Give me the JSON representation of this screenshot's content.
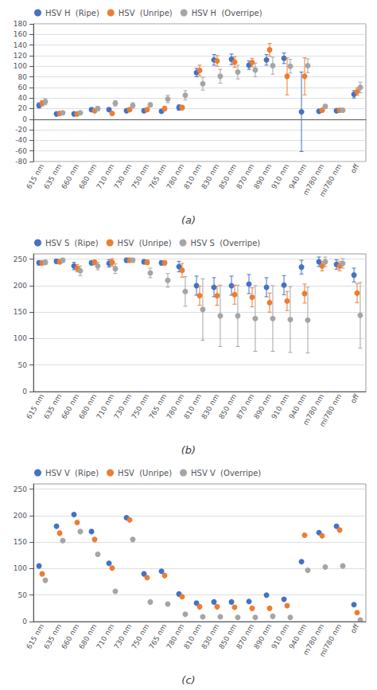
{
  "chart_data": [
    {
      "type": "scatter",
      "annotation": "(a)",
      "categories": [
        "615 nm",
        "635 nm",
        "660 nm",
        "680 nm",
        "710 nm",
        "730 nm",
        "750 nm",
        "765 nm",
        "780 nm",
        "810 nm",
        "830 nm",
        "850 nm",
        "870 nm",
        "890 nm",
        "910 nm",
        "940 nm",
        "m780 nm",
        "ml780 nm",
        "off"
      ],
      "series": [
        {
          "name": "HSV H  (Ripe)",
          "color": "#4472C4",
          "values": [
            26,
            10,
            10,
            18,
            18,
            16,
            16,
            15,
            22,
            88,
            112,
            113,
            102,
            112,
            115,
            14,
            15,
            16,
            47
          ],
          "errors": [
            5,
            2,
            2,
            3,
            3,
            3,
            3,
            3,
            5,
            8,
            10,
            10,
            8,
            10,
            10,
            75,
            3,
            3,
            7
          ]
        },
        {
          "name": "HSV  (Unripe)",
          "color": "#ED7D31",
          "values": [
            30,
            11,
            10,
            16,
            11,
            18,
            18,
            20,
            22,
            92,
            110,
            108,
            107,
            131,
            81,
            81,
            17,
            17,
            52
          ],
          "errors": [
            5,
            2,
            2,
            3,
            2,
            3,
            3,
            4,
            4,
            10,
            10,
            10,
            8,
            12,
            35,
            35,
            3,
            3,
            7
          ]
        },
        {
          "name": "HSV H  (Overripe)",
          "color": "#A5A5A5",
          "values": [
            33,
            12,
            12,
            20,
            30,
            26,
            27,
            38,
            45,
            67,
            81,
            89,
            93,
            101,
            100,
            101,
            24,
            17,
            60
          ],
          "errors": [
            6,
            2,
            2,
            4,
            5,
            5,
            4,
            7,
            9,
            12,
            13,
            13,
            13,
            16,
            13,
            13,
            4,
            3,
            10
          ]
        }
      ],
      "ylim": [
        -80,
        180
      ],
      "yticks": [
        -80,
        -60,
        -40,
        -20,
        0,
        20,
        40,
        60,
        80,
        100,
        120,
        140,
        160,
        180
      ],
      "grid": true,
      "legend": "upper left"
    },
    {
      "type": "scatter",
      "annotation": "(b)",
      "categories": [
        "615 nm",
        "635 nm",
        "660 nm",
        "680 nm",
        "710 nm",
        "730 nm",
        "750 nm",
        "765 nm",
        "780 nm",
        "810 nm",
        "830 nm",
        "850 nm",
        "870 nm",
        "890 nm",
        "910 nm",
        "940 nm",
        "m780 nm",
        "ml780 nm",
        "off"
      ],
      "series": [
        {
          "name": "HSV S  (Ripe)",
          "color": "#4472C4",
          "values": [
            243,
            246,
            237,
            243,
            242,
            248,
            245,
            243,
            236,
            200,
            197,
            200,
            203,
            197,
            201,
            235,
            245,
            240,
            220
          ],
          "errors": [
            4,
            4,
            7,
            4,
            7,
            4,
            4,
            4,
            10,
            18,
            18,
            18,
            18,
            18,
            18,
            13,
            9,
            9,
            13
          ]
        },
        {
          "name": "HSV  (Unripe)",
          "color": "#ED7D31",
          "values": [
            243,
            245,
            233,
            244,
            244,
            248,
            244,
            243,
            229,
            181,
            181,
            183,
            178,
            168,
            171,
            185,
            237,
            237,
            186
          ],
          "errors": [
            4,
            4,
            7,
            4,
            7,
            4,
            4,
            4,
            13,
            18,
            18,
            18,
            18,
            18,
            18,
            18,
            9,
            9,
            18
          ]
        },
        {
          "name": "HSV S  (Overripe)",
          "color": "#A5A5A5",
          "values": [
            244,
            248,
            228,
            237,
            232,
            248,
            224,
            210,
            189,
            155,
            143,
            143,
            138,
            138,
            136,
            135,
            245,
            242,
            144
          ],
          "errors": [
            4,
            4,
            9,
            7,
            9,
            4,
            9,
            13,
            28,
            58,
            58,
            58,
            62,
            62,
            62,
            62,
            9,
            9,
            62
          ]
        }
      ],
      "ylim": [
        0,
        260
      ],
      "yticks": [
        0,
        50,
        100,
        150,
        200,
        250
      ],
      "grid": true,
      "legend": "upper left"
    },
    {
      "type": "scatter",
      "annotation": "(c)",
      "categories": [
        "615 nm",
        "635 nm",
        "660 nm",
        "680 nm",
        "710 nm",
        "730 nm",
        "750 nm",
        "765 nm",
        "780 nm",
        "810 nm",
        "830 nm",
        "850 nm",
        "870 nm",
        "890 nm",
        "910 nm",
        "940 nm",
        "m780 nm",
        "ml780 nm",
        "off"
      ],
      "series": [
        {
          "name": "HSV V  (Ripe)",
          "color": "#4472C4",
          "values": [
            105,
            180,
            202,
            170,
            110,
            196,
            90,
            95,
            52,
            35,
            37,
            37,
            38,
            50,
            42,
            113,
            168,
            180,
            32
          ]
        },
        {
          "name": "HSV  (Unripe)",
          "color": "#ED7D31",
          "values": [
            90,
            167,
            187,
            155,
            101,
            192,
            83,
            87,
            47,
            28,
            28,
            27,
            25,
            25,
            30,
            163,
            162,
            173,
            17
          ]
        },
        {
          "name": "HSV V  (Overripe)",
          "color": "#A5A5A5",
          "values": [
            78,
            153,
            170,
            127,
            57,
            155,
            37,
            33,
            14,
            9,
            9,
            8,
            8,
            10,
            8,
            97,
            103,
            105,
            3
          ]
        }
      ],
      "ylim": [
        0,
        260
      ],
      "yticks": [
        0,
        50,
        100,
        150,
        200,
        250
      ],
      "grid": true,
      "legend": "upper left"
    }
  ]
}
